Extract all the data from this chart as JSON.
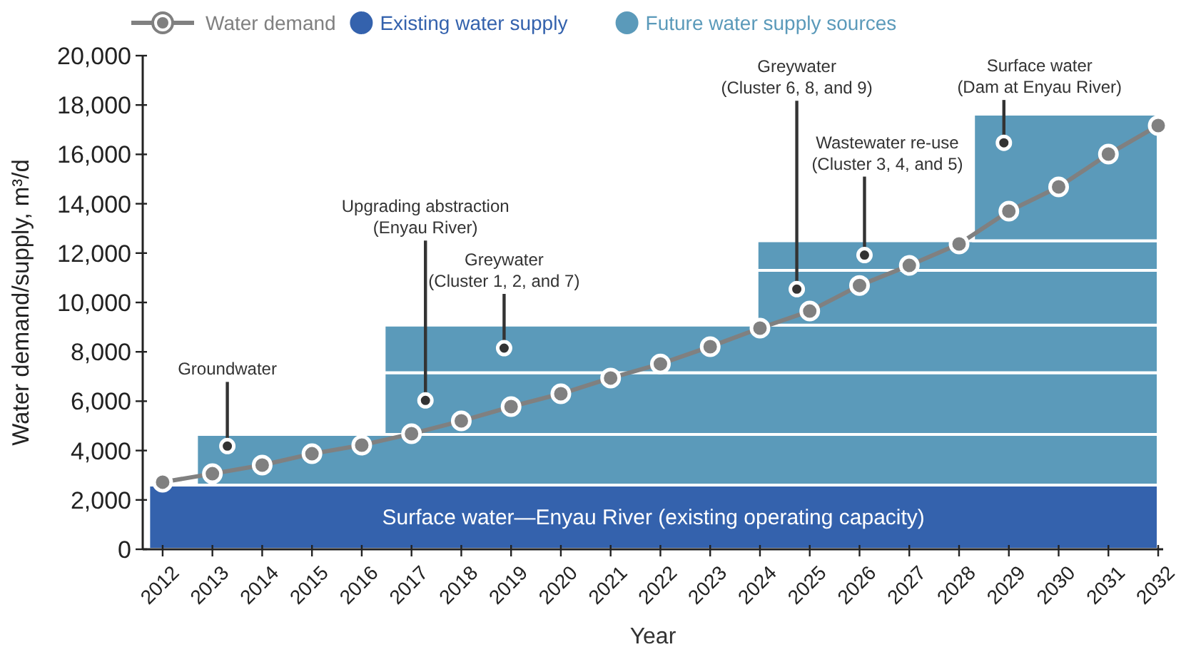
{
  "chart_data": {
    "type": "line",
    "xlabel": "Year",
    "ylabel": "Water demand/supply, m³/d",
    "xlim": [
      2011.6,
      2032.1
    ],
    "xticks": [
      2012,
      2013,
      2014,
      2015,
      2016,
      2017,
      2018,
      2019,
      2020,
      2021,
      2022,
      2023,
      2024,
      2025,
      2026,
      2027,
      2028,
      2029,
      2030,
      2031,
      2032
    ],
    "ylim": [
      0,
      20000
    ],
    "yticks": [
      {
        "value": 0,
        "label": "0"
      },
      {
        "value": 2000,
        "label": "2,000"
      },
      {
        "value": 4000,
        "label": "4,000"
      },
      {
        "value": 6000,
        "label": "6,000"
      },
      {
        "value": 8000,
        "label": "8,000"
      },
      {
        "value": 10000,
        "label": "10,000"
      },
      {
        "value": 12000,
        "label": "12,000"
      },
      {
        "value": 14000,
        "label": "14,000"
      },
      {
        "value": 16000,
        "label": "16,000"
      },
      {
        "value": 18000,
        "label": "18,000"
      },
      {
        "value": 20000,
        "label": "20,000"
      }
    ],
    "legend": "top left",
    "grid": false,
    "stacked": true,
    "series": [
      {
        "name": "Water demand",
        "color": "#808080",
        "marker": "circle",
        "x": [
          2012,
          2013,
          2014,
          2015,
          2016,
          2017,
          2018,
          2019,
          2020,
          2021,
          2022,
          2023,
          2024,
          2025,
          2026,
          2027,
          2028,
          2029,
          2030,
          2031,
          2032
        ],
        "values": [
          2720,
          3060,
          3410,
          3870,
          4220,
          4680,
          5200,
          5780,
          6300,
          6940,
          7510,
          8210,
          8960,
          9650,
          10690,
          11500,
          12370,
          13700,
          14680,
          16010,
          17170
        ]
      },
      {
        "name": "Existing water supply",
        "type": "area",
        "color": "#3462ad",
        "x": [
          2011.72,
          2032
        ],
        "values": [
          2600,
          2600
        ]
      },
      {
        "name": "Future water supply sources",
        "type": "area",
        "color": "#5b9aba",
        "x": [
          2012.68,
          2032
        ],
        "values": [
          2050,
          2050
        ]
      },
      {
        "type": "area",
        "color": "#5b9aba",
        "x": [
          2016.45,
          2032
        ],
        "values": [
          2500,
          2500
        ]
      },
      {
        "type": "area",
        "color": "#5b9aba",
        "x": [
          2016.45,
          2032
        ],
        "values": [
          1930,
          1930
        ]
      },
      {
        "type": "area",
        "color": "#5b9aba",
        "x": [
          2023.94,
          2032
        ],
        "values": [
          2220,
          2220
        ]
      },
      {
        "type": "area",
        "color": "#5b9aba",
        "x": [
          2023.94,
          2032
        ],
        "values": [
          1200,
          1200
        ]
      },
      {
        "type": "area",
        "color": "#5b9aba",
        "x": [
          2028.29,
          2032
        ],
        "values": [
          5130,
          5130
        ]
      }
    ],
    "annotations": [
      "Surface water—Enyau River (existing operating capacity)",
      {
        "text": "Groundwater",
        "x": 2013.3,
        "y": 4180
      },
      {
        "text": "Upgrading abstraction\n(Enyau River)",
        "x": 2017.28,
        "y": 6030
      },
      {
        "text": "Greywater\n(Cluster 1, 2, and 7)",
        "x": 2018.86,
        "y": 8150
      },
      {
        "text": "Greywater\n(Cluster 6, 8, and 9)",
        "x": 2024.74,
        "y": 10540
      },
      {
        "text": "Wastewater re-use\n(Cluster 3, 4, and 5)",
        "x": 2026.1,
        "y": 11920
      },
      {
        "text": "Surface water\n(Dam at Enyau River)",
        "x": 2028.9,
        "y": 16470
      }
    ]
  }
}
